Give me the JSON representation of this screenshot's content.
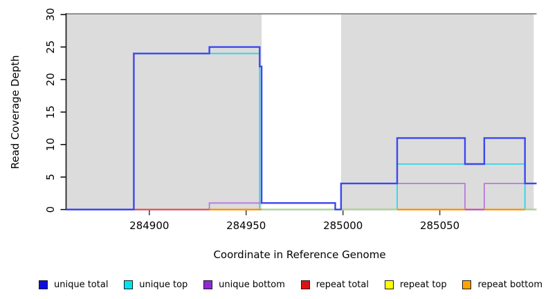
{
  "figure": {
    "xlabel": "Coordinate in Reference Genome",
    "ylabel": "Read Coverage Depth"
  },
  "chart_data": {
    "type": "line",
    "step": true,
    "title": "",
    "xlabel": "Coordinate in Reference Genome",
    "ylabel": "Read Coverage Depth",
    "xlim": [
      284857,
      285100
    ],
    "ylim": [
      0,
      30
    ],
    "x_ticks": [
      284900,
      284950,
      285000,
      285050
    ],
    "y_ticks": [
      0,
      5,
      10,
      15,
      20,
      25,
      30
    ],
    "grid": false,
    "legend_position": "bottom",
    "shaded_regions": [
      {
        "x0": 284857,
        "x1": 284958,
        "color": "#dcdcdc"
      },
      {
        "x0": 284999,
        "x1": 285098.5,
        "color": "#dcdcdc"
      }
    ],
    "series": [
      {
        "name": "repeat total",
        "color": "#e0556e",
        "width": 1.6,
        "points": [
          [
            284857,
            0
          ],
          [
            285100,
            0
          ]
        ]
      },
      {
        "name": "repeat top",
        "color": "#ffe400",
        "width": 1.6,
        "points": [
          [
            284857,
            0
          ],
          [
            285100,
            0
          ]
        ]
      },
      {
        "name": "unique top",
        "color": "#2cd5ea",
        "width": 1.8,
        "points": [
          [
            284857,
            0
          ],
          [
            284892,
            24
          ],
          [
            284957,
            0
          ],
          [
            285028,
            7
          ],
          [
            285094,
            0
          ],
          [
            285100,
            0
          ]
        ]
      },
      {
        "name": "unique bottom",
        "color": "#b678dc",
        "width": 1.8,
        "points": [
          [
            284857,
            0
          ],
          [
            284931,
            1
          ],
          [
            284996,
            0
          ],
          [
            284999,
            4
          ],
          [
            285063,
            0
          ],
          [
            285073,
            4
          ],
          [
            285100,
            4
          ]
        ]
      },
      {
        "name": "repeat bottom",
        "color": "#ff9300",
        "width": 2,
        "points": [
          [
            284857,
            0
          ],
          [
            285100,
            0
          ]
        ]
      },
      {
        "name": "unique total",
        "color": "#3a47ef",
        "width": 2.4,
        "points": [
          [
            284857,
            0
          ],
          [
            284892,
            24
          ],
          [
            284931,
            25
          ],
          [
            284957,
            22
          ],
          [
            284958,
            1
          ],
          [
            284996,
            0
          ],
          [
            284999,
            4
          ],
          [
            285028,
            11
          ],
          [
            285063,
            7
          ],
          [
            285073,
            11
          ],
          [
            285094,
            4
          ],
          [
            285100,
            4
          ]
        ]
      }
    ],
    "baseline_visible_segments": [
      {
        "x0": 284857,
        "x1": 284892,
        "color": "#3a47ef"
      },
      {
        "x0": 284892,
        "x1": 284931,
        "color": "#e0556e"
      },
      {
        "x0": 284931,
        "x1": 284958,
        "color": "#ff9300"
      },
      {
        "x0": 284958,
        "x1": 285028,
        "color": "#a5d9a5"
      },
      {
        "x0": 285028,
        "x1": 285063,
        "color": "#ff9300"
      },
      {
        "x0": 285063,
        "x1": 285073,
        "color": "#c353cf"
      },
      {
        "x0": 285073,
        "x1": 285094,
        "color": "#ff9300"
      },
      {
        "x0": 285094,
        "x1": 285100,
        "color": "#a5d9a5"
      }
    ]
  },
  "legend": {
    "items": [
      {
        "label": "unique total",
        "color": "#0d0de2"
      },
      {
        "label": "unique top",
        "color": "#00e4f2"
      },
      {
        "label": "unique bottom",
        "color": "#9328d8"
      },
      {
        "label": "repeat total",
        "color": "#e01010"
      },
      {
        "label": "repeat top",
        "color": "#ffff00"
      },
      {
        "label": "repeat bottom",
        "color": "#ffa300"
      }
    ]
  }
}
